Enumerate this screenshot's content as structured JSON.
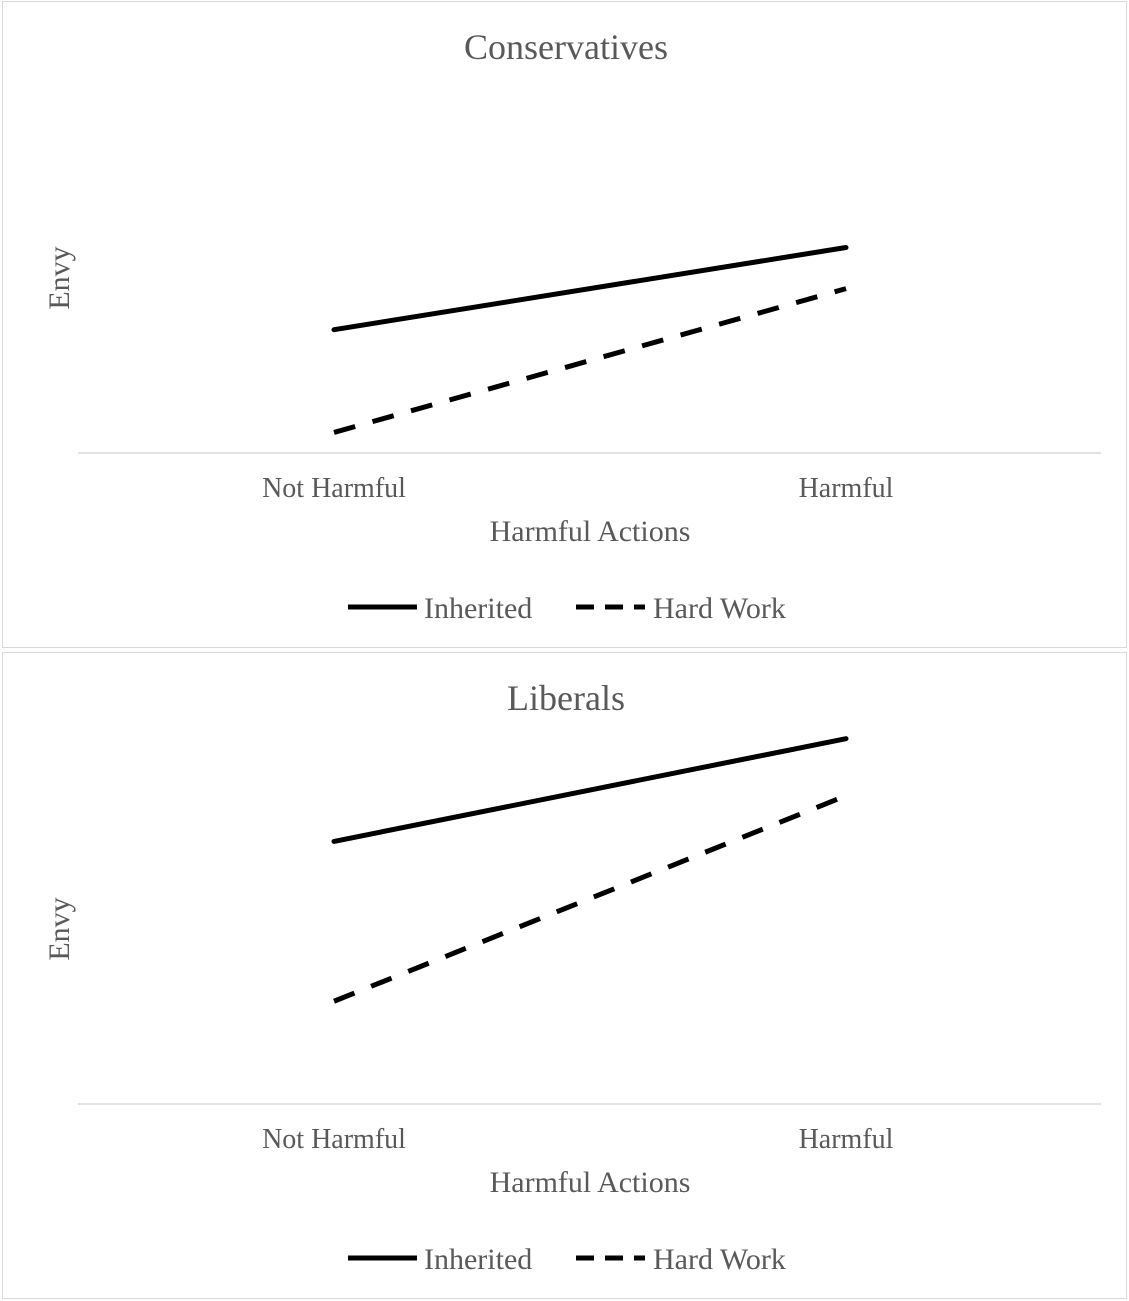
{
  "chart_data": [
    {
      "type": "line",
      "title": "Conservatives",
      "xlabel": "Harmful Actions",
      "ylabel": "Envy",
      "categories": [
        "Not Harmful",
        "Harmful"
      ],
      "series": [
        {
          "name": "Inherited",
          "values": [
            6.1,
            6.5
          ],
          "style": "solid"
        },
        {
          "name": "Hard Work",
          "values": [
            5.6,
            6.3
          ],
          "style": "dashed"
        }
      ],
      "ylim": [
        5.5,
        7.5
      ],
      "legend": "bottom",
      "grid": false,
      "colors": {
        "line": "#000000",
        "axis": "#d9d9d9",
        "text": "#595959"
      }
    },
    {
      "type": "line",
      "title": "Liberals",
      "xlabel": "Harmful Actions",
      "ylabel": "Envy",
      "categories": [
        "Not Harmful",
        "Harmful"
      ],
      "series": [
        {
          "name": "Inherited",
          "values": [
            5.95,
            6.4
          ],
          "style": "solid"
        },
        {
          "name": "Hard Work",
          "values": [
            5.25,
            6.15
          ],
          "style": "dashed"
        }
      ],
      "ylim": [
        4.8,
        6.6
      ],
      "legend": "bottom",
      "grid": false,
      "colors": {
        "line": "#000000",
        "axis": "#d9d9d9",
        "text": "#595959"
      }
    }
  ]
}
